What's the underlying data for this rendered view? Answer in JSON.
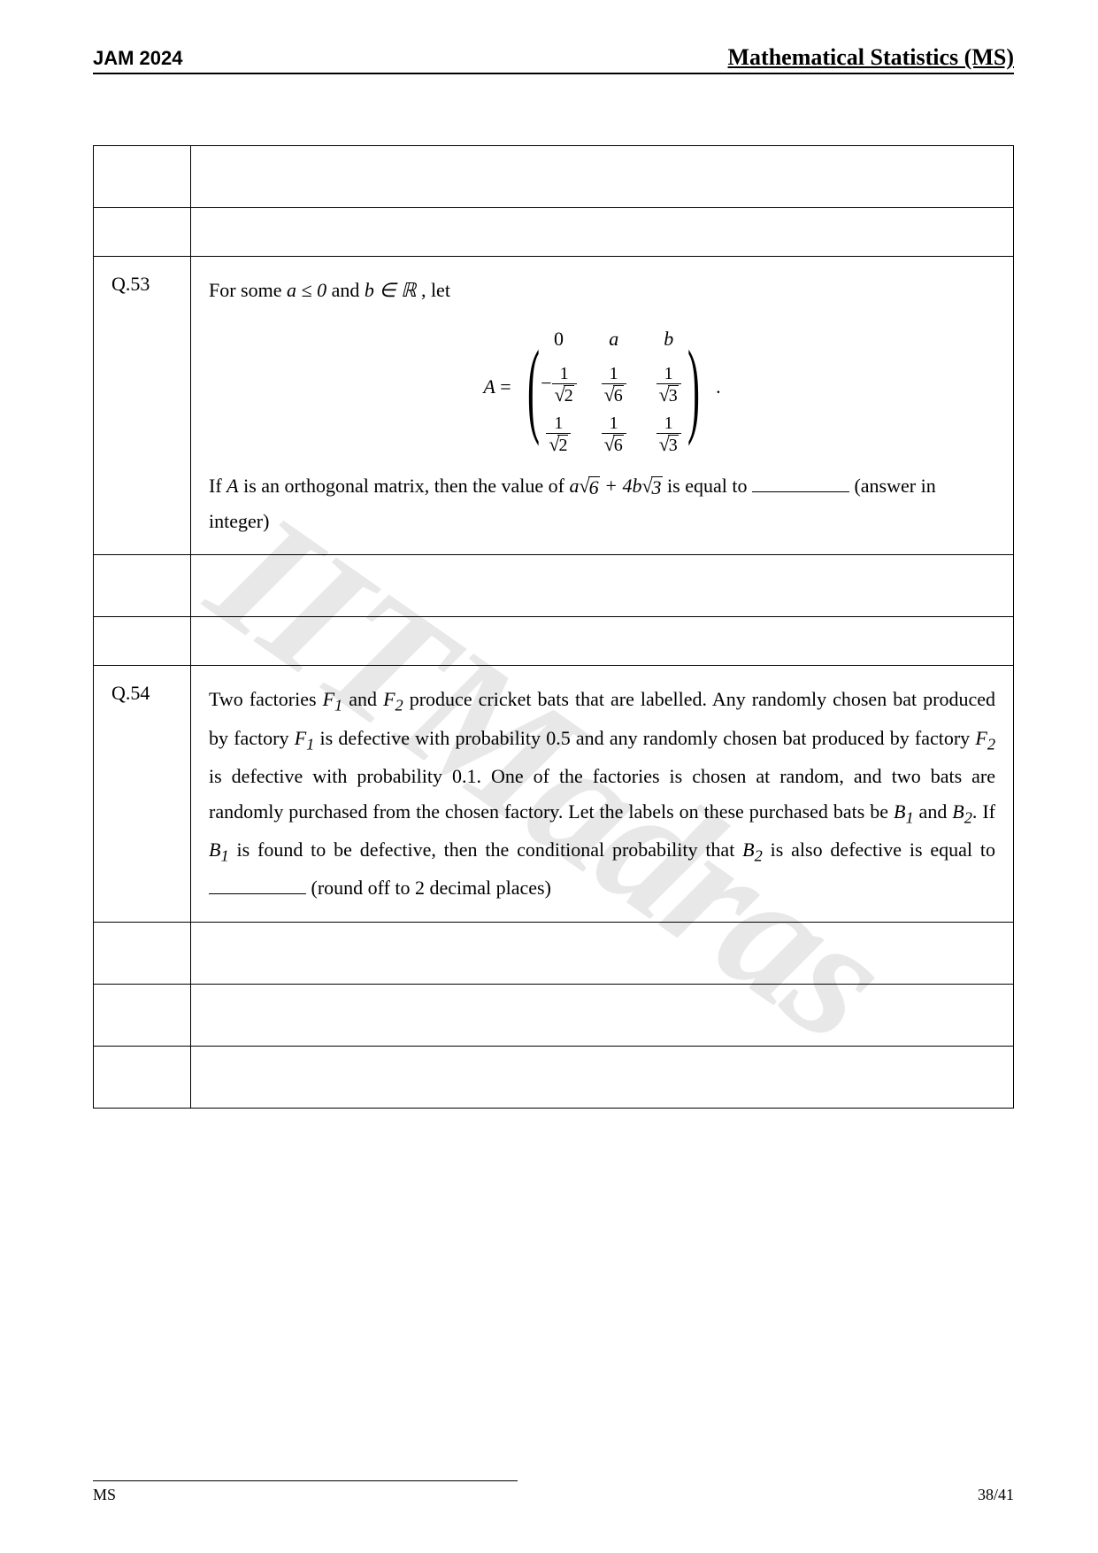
{
  "header": {
    "left": "JAM 2024",
    "right": "Mathematical Statistics (MS)"
  },
  "watermark": "IITMadras",
  "q53": {
    "number": "Q.53",
    "intro_prefix": "For some ",
    "intro_cond_a": "a ≤ 0",
    "intro_and": " and ",
    "intro_cond_b": "b ∈ ℝ",
    "intro_suffix": " , let",
    "matrix_lhs": "A",
    "line2_prefix": "If ",
    "line2_A": "A",
    "line2_mid": " is an orthogonal matrix, then the value of  ",
    "expr_a": "a",
    "expr_sqrt6": "6",
    "expr_plus": " + 4",
    "expr_b": "b",
    "expr_sqrt3": "3",
    "line2_suffix": "  is equal to ",
    "line3": " (answer in integer)"
  },
  "q54": {
    "number": "Q.54",
    "text_1": "Two factories ",
    "F1": "F",
    "sub1": "1",
    "text_2": " and ",
    "F2": "F",
    "sub2": "2",
    "text_3": " produce cricket bats that are labelled. Any randomly chosen bat produced by factory ",
    "text_4": " is defective with probability 0.5 and any randomly chosen bat produced by factory ",
    "text_5": " is defective with probability 0.1. One of the factories is chosen at random, and two bats are randomly purchased from the chosen factory. Let the labels on these purchased bats be ",
    "B1": "B",
    "text_6": " and ",
    "B2": "B",
    "text_7": ". If ",
    "text_8": " is found to be defective, then the conditional probability that ",
    "text_9": " is also defective is equal to ",
    "text_10": " (round off to 2 decimal places)"
  },
  "footer": {
    "left": "MS",
    "right": "38/41"
  }
}
